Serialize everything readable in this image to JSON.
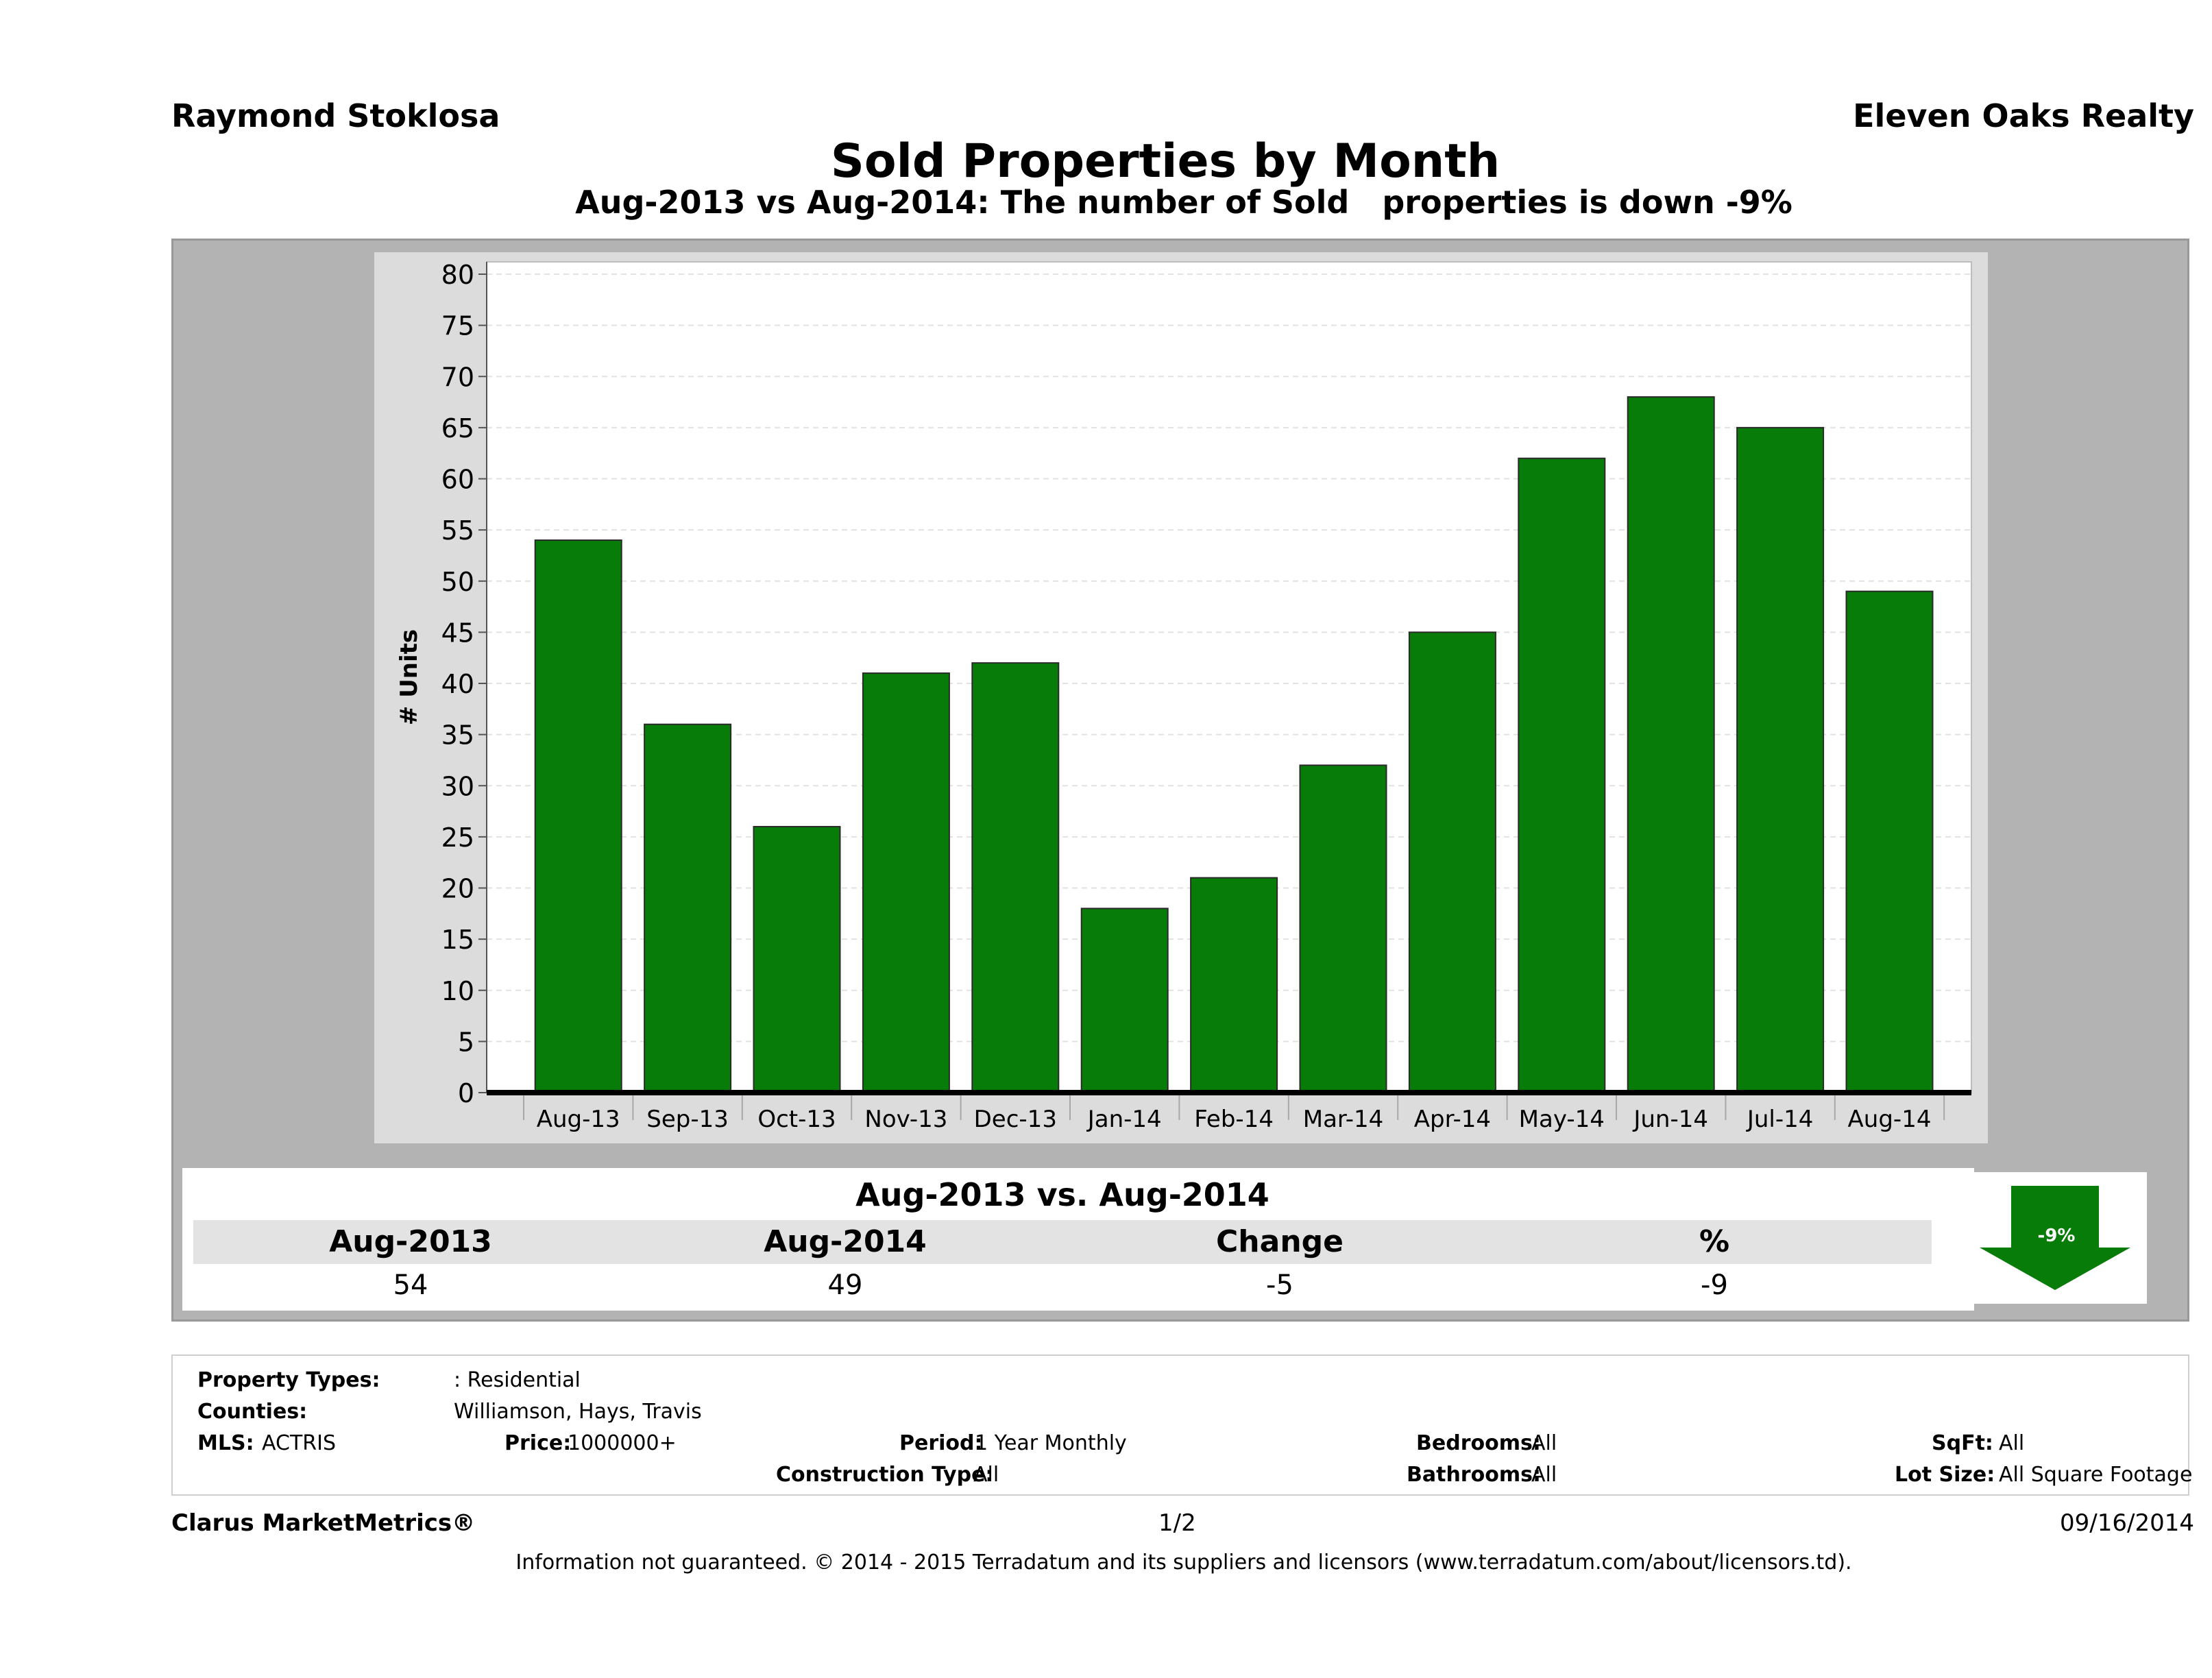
{
  "header": {
    "agent": "Raymond Stoklosa",
    "brokerage": "Eleven Oaks Realty",
    "title": "Sold Properties by Month",
    "subtitle": "Aug-2013 vs Aug-2014: The number of Sold   properties is down -9%"
  },
  "chart_data": {
    "type": "bar",
    "categories": [
      "Aug-13",
      "Sep-13",
      "Oct-13",
      "Nov-13",
      "Dec-13",
      "Jan-14",
      "Feb-14",
      "Mar-14",
      "Apr-14",
      "May-14",
      "Jun-14",
      "Jul-14",
      "Aug-14"
    ],
    "values": [
      54,
      36,
      26,
      41,
      42,
      18,
      21,
      32,
      45,
      62,
      68,
      65,
      49
    ],
    "ylabel": "# Units",
    "xlabel": "",
    "ylim": [
      0,
      80
    ],
    "yticks": [
      0,
      5,
      10,
      15,
      20,
      25,
      30,
      35,
      40,
      45,
      50,
      55,
      60,
      65,
      70,
      75,
      80
    ],
    "bar_color": "#087c08",
    "grid": true,
    "legend": "none"
  },
  "summary": {
    "title": "Aug-2013 vs. Aug-2014",
    "headers": [
      "Aug-2013",
      "Aug-2014",
      "Change",
      "%"
    ],
    "values": [
      "54",
      "49",
      "-5",
      "-9"
    ],
    "arrow_label": "-9%",
    "arrow_color": "#087c08"
  },
  "criteria": {
    "property_types_label": "Property Types:",
    "property_types_value": ": Residential",
    "counties_label": "Counties:",
    "counties_value": "Williamson, Hays, Travis",
    "mls_label": "MLS:",
    "mls_value": "ACTRIS",
    "price_label": "Price:",
    "price_value": "1000000+",
    "period_label": "Period:",
    "period_value": "1 Year Monthly",
    "construction_label": "Construction Type:",
    "construction_value": "All",
    "bedrooms_label": "Bedrooms:",
    "bedrooms_value": "All",
    "bathrooms_label": "Bathrooms:",
    "bathrooms_value": "All",
    "sqft_label": "SqFt:",
    "sqft_value": "All",
    "lotsize_label": "Lot Size:",
    "lotsize_value": "All Square Footage"
  },
  "footer": {
    "product": "Clarus MarketMetrics®",
    "page": "1/2",
    "date": "09/16/2014",
    "disclaimer": "Information not guaranteed. © 2014 - 2015 Terradatum and its suppliers and licensors (www.terradatum.com/about/licensors.td)."
  }
}
